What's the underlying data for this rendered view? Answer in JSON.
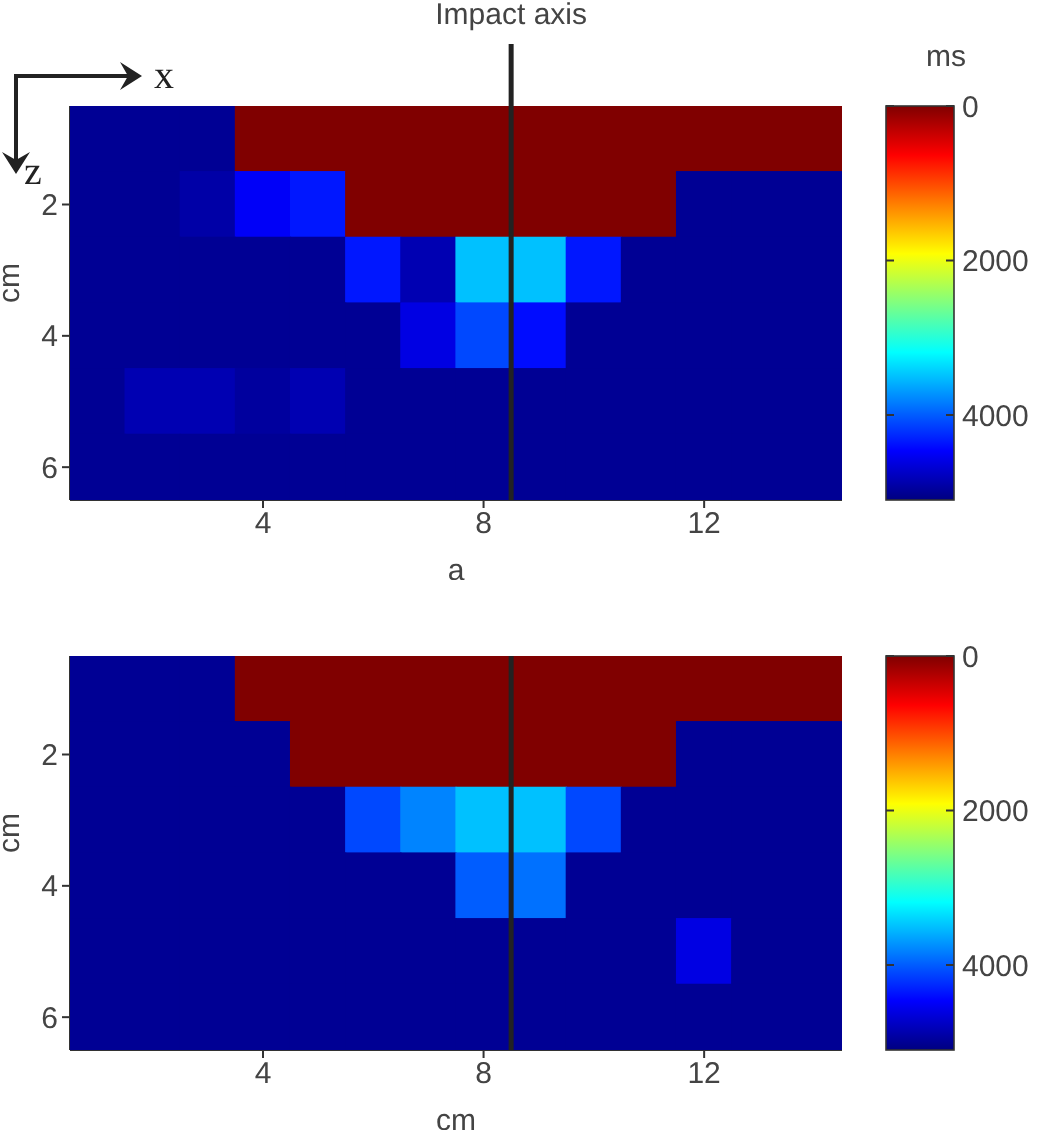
{
  "chart_data": [
    {
      "type": "heatmap",
      "xlabel": "a",
      "ylabel": "cm",
      "clabel": "ms",
      "annotations": [
        "x",
        "z"
      ],
      "x": [
        1,
        2,
        3,
        4,
        5,
        6,
        7,
        8,
        9,
        10,
        11,
        12,
        13,
        14
      ],
      "xlim": [
        0.5,
        14.5
      ],
      "xticks": [
        4,
        8,
        12
      ],
      "y": [
        1,
        2,
        3,
        4,
        5,
        6
      ],
      "ylim": [
        6.5,
        0.5
      ],
      "yticks": [
        2,
        4,
        6
      ],
      "clim": [
        0,
        5100
      ],
      "cticks": [
        0,
        2000,
        4000
      ],
      "ref_lines": [
        {
          "axis": "x",
          "value": 8.5,
          "label": "Impact axis",
          "color": "#222222"
        }
      ],
      "cells": [
        [
          5000,
          5000,
          5000,
          0,
          0,
          0,
          0,
          0,
          0,
          0,
          0,
          0,
          0,
          0
        ],
        [
          5000,
          5000,
          4900,
          4500,
          4350,
          0,
          0,
          0,
          0,
          0,
          0,
          5000,
          5000,
          5000
        ],
        [
          5000,
          5000,
          5000,
          5000,
          5000,
          4350,
          4850,
          3500,
          3500,
          4350,
          5000,
          5000,
          5000,
          5000
        ],
        [
          5000,
          5000,
          5000,
          5000,
          5000,
          5000,
          4600,
          4100,
          4400,
          5000,
          5000,
          5000,
          5000,
          5000
        ],
        [
          5000,
          4850,
          4850,
          4950,
          4850,
          5000,
          5000,
          5000,
          5000,
          5000,
          5000,
          5000,
          5000,
          5000
        ],
        [
          5000,
          5000,
          5000,
          5000,
          5000,
          5000,
          5000,
          5000,
          5000,
          5000,
          5000,
          5000,
          5000,
          5000
        ]
      ]
    },
    {
      "type": "heatmap",
      "xlabel": "cm",
      "ylabel": "cm",
      "x": [
        1,
        2,
        3,
        4,
        5,
        6,
        7,
        8,
        9,
        10,
        11,
        12,
        13,
        14
      ],
      "xlim": [
        0.5,
        14.5
      ],
      "xticks": [
        4,
        8,
        12
      ],
      "y": [
        1,
        2,
        3,
        4,
        5,
        6
      ],
      "ylim": [
        6.5,
        0.5
      ],
      "yticks": [
        2,
        4,
        6
      ],
      "clim": [
        0,
        5100
      ],
      "cticks": [
        0,
        2000,
        4000
      ],
      "ref_lines": [
        {
          "axis": "x",
          "value": 8.5,
          "color": "#222222"
        }
      ],
      "cells": [
        [
          5000,
          5000,
          5000,
          0,
          0,
          0,
          0,
          0,
          0,
          0,
          0,
          0,
          0,
          0
        ],
        [
          5000,
          5000,
          5000,
          5000,
          0,
          0,
          0,
          0,
          0,
          0,
          0,
          5000,
          5000,
          5000
        ],
        [
          5000,
          5000,
          5000,
          5000,
          5000,
          4100,
          3800,
          3500,
          3500,
          4100,
          5000,
          5000,
          5000,
          5000
        ],
        [
          5000,
          5000,
          5000,
          5000,
          5000,
          5000,
          5000,
          4000,
          3900,
          5000,
          5000,
          5000,
          5000,
          5000
        ],
        [
          5000,
          5000,
          5000,
          5000,
          5000,
          5000,
          5000,
          5000,
          5000,
          5000,
          5000,
          4600,
          5000,
          5000
        ],
        [
          5000,
          5000,
          5000,
          5000,
          5000,
          5000,
          5000,
          5000,
          5000,
          5000,
          5000,
          5000,
          5000,
          5000
        ]
      ]
    }
  ]
}
